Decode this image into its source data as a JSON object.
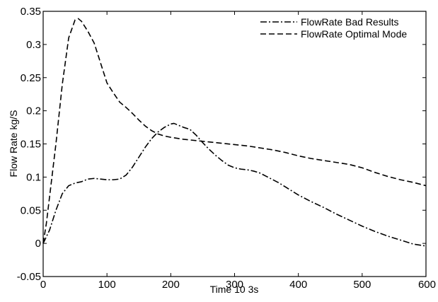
{
  "chart_data": {
    "type": "line",
    "title": "",
    "xlabel": "Time 10 3s",
    "ylabel": "Flow Rate kg/S",
    "xlim": [
      0,
      600
    ],
    "ylim": [
      -0.05,
      0.35
    ],
    "x_ticks": [
      "0",
      "100",
      "200",
      "300",
      "400",
      "500",
      "600"
    ],
    "y_ticks": [
      "-0.05",
      "0",
      "0.05",
      "0.1",
      "0.15",
      "0.2",
      "0.25",
      "0.3",
      "0.35"
    ],
    "grid": false,
    "legend_position": "top-right",
    "series": [
      {
        "name": "FlowRate Bad Results",
        "style": "dashdot",
        "color": "#000000",
        "points": [
          [
            0,
            0
          ],
          [
            10,
            0.02
          ],
          [
            20,
            0.05
          ],
          [
            30,
            0.075
          ],
          [
            40,
            0.087
          ],
          [
            50,
            0.091
          ],
          [
            60,
            0.093
          ],
          [
            70,
            0.097
          ],
          [
            80,
            0.098
          ],
          [
            90,
            0.097
          ],
          [
            100,
            0.096
          ],
          [
            110,
            0.096
          ],
          [
            120,
            0.097
          ],
          [
            130,
            0.103
          ],
          [
            140,
            0.115
          ],
          [
            150,
            0.13
          ],
          [
            160,
            0.145
          ],
          [
            170,
            0.158
          ],
          [
            180,
            0.168
          ],
          [
            190,
            0.175
          ],
          [
            200,
            0.18
          ],
          [
            205,
            0.181
          ],
          [
            210,
            0.179
          ],
          [
            220,
            0.175
          ],
          [
            230,
            0.172
          ],
          [
            240,
            0.163
          ],
          [
            250,
            0.152
          ],
          [
            260,
            0.142
          ],
          [
            270,
            0.133
          ],
          [
            280,
            0.125
          ],
          [
            290,
            0.118
          ],
          [
            300,
            0.114
          ],
          [
            310,
            0.112
          ],
          [
            320,
            0.111
          ],
          [
            330,
            0.109
          ],
          [
            340,
            0.106
          ],
          [
            350,
            0.101
          ],
          [
            360,
            0.096
          ],
          [
            370,
            0.091
          ],
          [
            380,
            0.085
          ],
          [
            390,
            0.079
          ],
          [
            400,
            0.073
          ],
          [
            420,
            0.063
          ],
          [
            440,
            0.054
          ],
          [
            460,
            0.044
          ],
          [
            480,
            0.035
          ],
          [
            500,
            0.026
          ],
          [
            520,
            0.018
          ],
          [
            540,
            0.011
          ],
          [
            560,
            0.005
          ],
          [
            580,
            -0.001
          ],
          [
            600,
            -0.004
          ]
        ]
      },
      {
        "name": "FlowRate Optimal Mode",
        "style": "dashed",
        "color": "#000000",
        "points": [
          [
            0,
            0
          ],
          [
            5,
            0.03
          ],
          [
            10,
            0.07
          ],
          [
            20,
            0.15
          ],
          [
            30,
            0.24
          ],
          [
            40,
            0.31
          ],
          [
            50,
            0.337
          ],
          [
            55,
            0.339
          ],
          [
            60,
            0.335
          ],
          [
            70,
            0.32
          ],
          [
            80,
            0.302
          ],
          [
            90,
            0.272
          ],
          [
            100,
            0.242
          ],
          [
            110,
            0.227
          ],
          [
            120,
            0.213
          ],
          [
            130,
            0.205
          ],
          [
            140,
            0.196
          ],
          [
            150,
            0.186
          ],
          [
            160,
            0.177
          ],
          [
            170,
            0.17
          ],
          [
            180,
            0.165
          ],
          [
            190,
            0.162
          ],
          [
            200,
            0.16
          ],
          [
            220,
            0.157
          ],
          [
            240,
            0.155
          ],
          [
            260,
            0.153
          ],
          [
            280,
            0.151
          ],
          [
            300,
            0.149
          ],
          [
            320,
            0.147
          ],
          [
            340,
            0.144
          ],
          [
            360,
            0.141
          ],
          [
            380,
            0.137
          ],
          [
            400,
            0.132
          ],
          [
            420,
            0.128
          ],
          [
            440,
            0.125
          ],
          [
            460,
            0.122
          ],
          [
            480,
            0.119
          ],
          [
            500,
            0.114
          ],
          [
            520,
            0.107
          ],
          [
            540,
            0.101
          ],
          [
            560,
            0.096
          ],
          [
            580,
            0.092
          ],
          [
            600,
            0.087
          ]
        ]
      }
    ]
  }
}
